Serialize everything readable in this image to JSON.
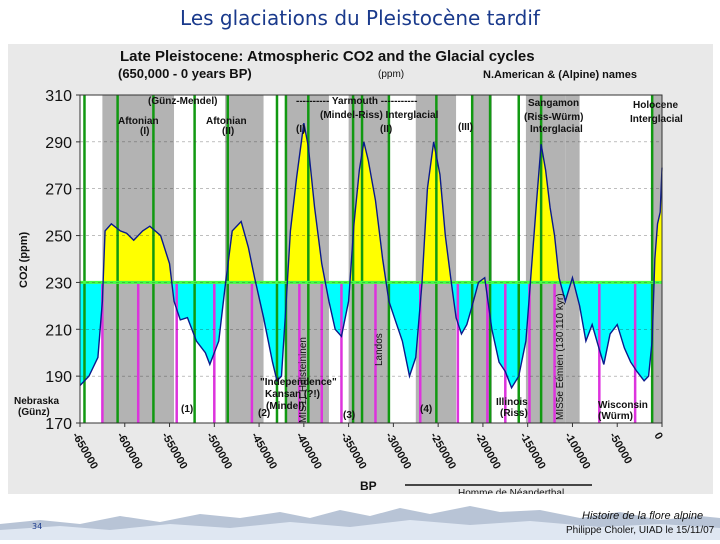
{
  "slide": {
    "title": "Les glaciations du Pleistocène tardif",
    "slide_number": "34",
    "footer_line1": "Histoire de la flore alpine",
    "footer_line2": "Philippe Choler, UIAD le 15/11/07",
    "neanderthal_label": "Homme de Néanderthal"
  },
  "chart_data": {
    "type": "area",
    "title": "Late Pleistocene: Atmospheric CO2 and the Glacial cycles",
    "subtitle": "(650,000 - 0 years BP)",
    "unit_note": "(ppm)",
    "names_note": "N.American & (Alpine) names",
    "ylabel": "CO2 (ppm)",
    "xlabel": "BP",
    "ylim": [
      170,
      310
    ],
    "xlim": [
      -650000,
      0
    ],
    "threshold": 230,
    "y_ticks": [
      170,
      190,
      210,
      230,
      250,
      270,
      290,
      310
    ],
    "x_ticks": [
      -650000,
      -600000,
      -550000,
      -500000,
      -450000,
      -400000,
      -350000,
      -300000,
      -250000,
      -200000,
      -150000,
      -100000,
      -50000,
      0
    ],
    "x_tick_labels": [
      "-650000",
      "-600000",
      "-550000",
      "-500000",
      "-450000",
      "-400000",
      "-350000",
      "-300000",
      "-250000",
      "-200000",
      "-150000",
      "-100000",
      "-50000",
      "0"
    ],
    "series": [
      {
        "x": [
          -650000,
          -640000,
          -630000,
          -625000,
          -622000,
          -615000,
          -605000,
          -598000,
          -590000,
          -580000,
          -572000,
          -560000,
          -550000,
          -545000,
          -538000,
          -530000,
          -520000,
          -510000,
          -505000,
          -495000,
          -488000,
          -480000,
          -470000,
          -462000,
          -455000,
          -445000,
          -435000,
          -430000,
          -425000,
          -420000,
          -415000,
          -408000,
          -400000,
          -395000,
          -388000,
          -380000,
          -372000,
          -365000,
          -358000,
          -350000,
          -344000,
          -338000,
          -333000,
          -328000,
          -320000,
          -312000,
          -305000,
          -298000,
          -290000,
          -282000,
          -275000,
          -268000,
          -262000,
          -255000,
          -248000,
          -242000,
          -236000,
          -230000,
          -224000,
          -218000,
          -212000,
          -205000,
          -198000,
          -190000,
          -182000,
          -175000,
          -168000,
          -160000,
          -152000,
          -145000,
          -140000,
          -135000,
          -130000,
          -125000,
          -120000,
          -115000,
          -108000,
          -100000,
          -92000,
          -85000,
          -78000,
          -72000,
          -65000,
          -58000,
          -50000,
          -42000,
          -35000,
          -28000,
          -20000,
          -15000,
          -11000,
          -8000,
          -5000,
          -2000,
          0
        ],
        "values": [
          186,
          190,
          198,
          222,
          252,
          255,
          252,
          251,
          248,
          252,
          254,
          250,
          238,
          222,
          214,
          215,
          205,
          200,
          195,
          205,
          228,
          252,
          256,
          245,
          232,
          215,
          196,
          188,
          190,
          220,
          252,
          275,
          298,
          288,
          262,
          238,
          222,
          210,
          207,
          222,
          255,
          278,
          290,
          282,
          265,
          240,
          222,
          214,
          205,
          190,
          198,
          230,
          270,
          290,
          276,
          250,
          232,
          215,
          208,
          212,
          220,
          230,
          232,
          210,
          196,
          192,
          185,
          190,
          205,
          240,
          265,
          289,
          278,
          262,
          250,
          232,
          222,
          232,
          220,
          205,
          212,
          204,
          195,
          208,
          212,
          202,
          196,
          192,
          188,
          190,
          205,
          240,
          255,
          260,
          279
        ]
      }
    ],
    "interglacial_labels": [
      {
        "name": "Aftonian",
        "num": "(I)"
      },
      {
        "name": "Aftonian",
        "num": "(II)"
      },
      {
        "num": "(I)"
      },
      {
        "num": "(II)"
      },
      {
        "num": "(III)"
      },
      {
        "name": "(Günz-Mendel)"
      },
      {
        "name": "---------- Yarmouth -----------"
      },
      {
        "name": "(Mindel-Riss) Interglacial"
      },
      {
        "name": "Sangamon"
      },
      {
        "name": "(Riss-Würm)"
      },
      {
        "name": "Interglacial"
      },
      {
        "name": "Holocene"
      },
      {
        "name": "Interglacial"
      }
    ],
    "glacial_labels": [
      {
        "name": "Nebraska"
      },
      {
        "name": "(Günz)"
      },
      {
        "name": "\"Independence\""
      },
      {
        "name": "Kansan (?!)"
      },
      {
        "name": "(Mindel)"
      },
      {
        "name": "(1)"
      },
      {
        "name": "(2)"
      },
      {
        "name": "(3)"
      },
      {
        "name": "(4)"
      },
      {
        "name": "Illinois"
      },
      {
        "name": "(Riss)"
      },
      {
        "name": "Wisconsin"
      },
      {
        "name": "(Würm)"
      }
    ],
    "vertical_annotations": [
      {
        "text": "MIS11 Holsteininen"
      },
      {
        "text": "Landos"
      },
      {
        "text": "MIS5e Eémien (130 110 kyr)"
      }
    ],
    "green_boundaries": [
      -645000,
      -608000,
      -568000,
      -522000,
      -485000,
      -430000,
      -420000,
      -395000,
      -345000,
      -335000,
      -305000,
      -252000,
      -212000,
      -192000,
      -160000,
      -135000,
      -11000
    ],
    "magenta_boundaries": [
      -625000,
      -585000,
      -542000,
      -500000,
      -458000,
      -405000,
      -380000,
      -358000,
      -320000,
      -270000,
      -228000,
      -195000,
      -175000,
      -148000,
      -120000,
      -70000,
      -30000
    ],
    "colors": {
      "interglacial_fill": "#ffff00",
      "glacial_fill": "#00ffff",
      "line": "#0a1a8c",
      "threshold": "#44ff44",
      "green_boundary": "#119911",
      "magenta_boundary": "#dd33dd",
      "gray_band": "#b3b3b3",
      "plot_bg": "#ffffff"
    }
  }
}
